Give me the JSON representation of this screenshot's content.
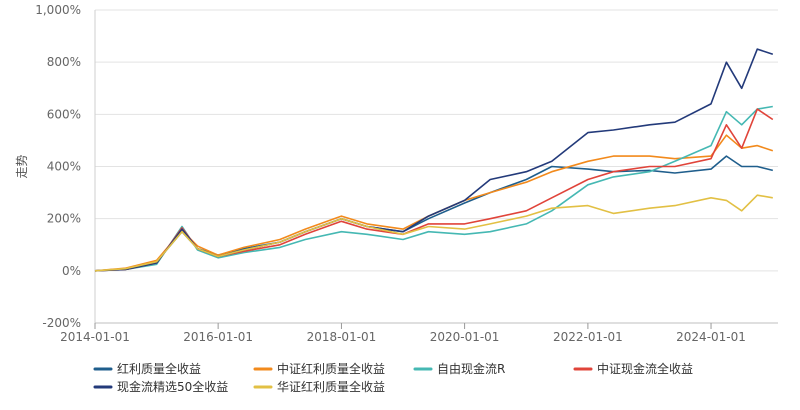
{
  "chart_data": {
    "type": "line",
    "title": "",
    "xlabel": "",
    "ylabel": "走势",
    "ylim": [
      -200,
      1000
    ],
    "yticks": [
      -200,
      0,
      200,
      400,
      600,
      800,
      1000
    ],
    "ytick_labels": [
      "-200%",
      "0%",
      "200%",
      "400%",
      "600%",
      "800%",
      "1,000%"
    ],
    "xticks": [
      "2014-01-01",
      "2016-01-01",
      "2018-01-01",
      "2020-01-01",
      "2022-01-01",
      "2024-01-01"
    ],
    "xlim": [
      "2014-01-01",
      "2025-02-01"
    ],
    "grid": "horizontal",
    "legend_position": "bottom",
    "series": [
      {
        "name": "红利质量全收益",
        "color": "#1f5e8c",
        "x": [
          "2014-01-01",
          "2014-07-01",
          "2015-01-01",
          "2015-06-01",
          "2015-09-01",
          "2016-01-01",
          "2016-06-01",
          "2017-01-01",
          "2017-06-01",
          "2018-01-01",
          "2018-06-01",
          "2019-01-01",
          "2019-06-01",
          "2020-01-01",
          "2020-06-01",
          "2021-01-01",
          "2021-06-01",
          "2022-01-01",
          "2022-06-01",
          "2023-01-01",
          "2023-06-01",
          "2024-01-01",
          "2024-04-01",
          "2024-07-01",
          "2024-10-01",
          "2025-01-01"
        ],
        "values": [
          0,
          8,
          35,
          150,
          85,
          60,
          85,
          110,
          150,
          200,
          170,
          150,
          200,
          260,
          300,
          350,
          400,
          390,
          380,
          385,
          375,
          390,
          440,
          400,
          400,
          385
        ]
      },
      {
        "name": "中证红利质量全收益",
        "color": "#f28a1c",
        "x": [
          "2014-01-01",
          "2014-07-01",
          "2015-01-01",
          "2015-06-01",
          "2015-09-01",
          "2016-01-01",
          "2016-06-01",
          "2017-01-01",
          "2017-06-01",
          "2018-01-01",
          "2018-06-01",
          "2019-01-01",
          "2019-06-01",
          "2020-01-01",
          "2020-06-01",
          "2021-01-01",
          "2021-06-01",
          "2022-01-01",
          "2022-06-01",
          "2023-01-01",
          "2023-06-01",
          "2024-01-01",
          "2024-04-01",
          "2024-07-01",
          "2024-10-01",
          "2025-01-01"
        ],
        "values": [
          0,
          10,
          40,
          155,
          95,
          60,
          90,
          120,
          160,
          210,
          180,
          160,
          210,
          270,
          300,
          340,
          380,
          420,
          440,
          440,
          430,
          440,
          520,
          470,
          480,
          460
        ]
      },
      {
        "name": "自由现金流R",
        "color": "#45b8b3",
        "x": [
          "2014-01-01",
          "2014-07-01",
          "2015-01-01",
          "2015-06-01",
          "2015-09-01",
          "2016-01-01",
          "2016-06-01",
          "2017-01-01",
          "2017-06-01",
          "2018-01-01",
          "2018-06-01",
          "2019-01-01",
          "2019-06-01",
          "2020-01-01",
          "2020-06-01",
          "2021-01-01",
          "2021-06-01",
          "2022-01-01",
          "2022-06-01",
          "2023-01-01",
          "2023-06-01",
          "2024-01-01",
          "2024-04-01",
          "2024-07-01",
          "2024-10-01",
          "2025-01-01"
        ],
        "values": [
          0,
          5,
          25,
          170,
          80,
          50,
          70,
          90,
          120,
          150,
          140,
          120,
          150,
          140,
          150,
          180,
          230,
          330,
          360,
          380,
          420,
          480,
          610,
          560,
          620,
          630
        ]
      },
      {
        "name": "中证现金流全收益",
        "color": "#e0443a",
        "x": [
          "2014-01-01",
          "2014-07-01",
          "2015-01-01",
          "2015-06-01",
          "2015-09-01",
          "2016-01-01",
          "2016-06-01",
          "2017-01-01",
          "2017-06-01",
          "2018-01-01",
          "2018-06-01",
          "2019-01-01",
          "2019-06-01",
          "2020-01-01",
          "2020-06-01",
          "2021-01-01",
          "2021-06-01",
          "2022-01-01",
          "2022-06-01",
          "2023-01-01",
          "2023-06-01",
          "2024-01-01",
          "2024-04-01",
          "2024-07-01",
          "2024-10-01",
          "2025-01-01"
        ],
        "values": [
          0,
          5,
          30,
          165,
          85,
          55,
          75,
          100,
          140,
          190,
          160,
          140,
          180,
          180,
          200,
          230,
          280,
          350,
          380,
          400,
          400,
          430,
          560,
          470,
          620,
          580
        ]
      },
      {
        "name": "现金流精选50全收益",
        "color": "#233a7a",
        "x": [
          "2014-01-01",
          "2014-07-01",
          "2015-01-01",
          "2015-06-01",
          "2015-09-01",
          "2016-01-01",
          "2016-06-01",
          "2017-01-01",
          "2017-06-01",
          "2018-01-01",
          "2018-06-01",
          "2019-01-01",
          "2019-06-01",
          "2020-01-01",
          "2020-06-01",
          "2021-01-01",
          "2021-06-01",
          "2022-01-01",
          "2022-06-01",
          "2023-01-01",
          "2023-06-01",
          "2024-01-01",
          "2024-04-01",
          "2024-07-01",
          "2024-10-01",
          "2025-01-01"
        ],
        "values": [
          0,
          5,
          30,
          160,
          85,
          55,
          80,
          110,
          150,
          200,
          170,
          150,
          210,
          270,
          350,
          380,
          420,
          530,
          540,
          560,
          570,
          640,
          800,
          700,
          850,
          830
        ]
      },
      {
        "name": "华证红利质量全收益",
        "color": "#e2c044",
        "x": [
          "2014-01-01",
          "2014-07-01",
          "2015-01-01",
          "2015-06-01",
          "2015-09-01",
          "2016-01-01",
          "2016-06-01",
          "2017-01-01",
          "2017-06-01",
          "2018-01-01",
          "2018-06-01",
          "2019-01-01",
          "2019-06-01",
          "2020-01-01",
          "2020-06-01",
          "2021-01-01",
          "2021-06-01",
          "2022-01-01",
          "2022-06-01",
          "2023-01-01",
          "2023-06-01",
          "2024-01-01",
          "2024-04-01",
          "2024-07-01",
          "2024-10-01",
          "2025-01-01"
        ],
        "values": [
          0,
          8,
          35,
          150,
          85,
          55,
          80,
          110,
          150,
          200,
          170,
          140,
          170,
          160,
          180,
          210,
          240,
          250,
          220,
          240,
          250,
          280,
          270,
          230,
          290,
          280
        ]
      }
    ]
  }
}
